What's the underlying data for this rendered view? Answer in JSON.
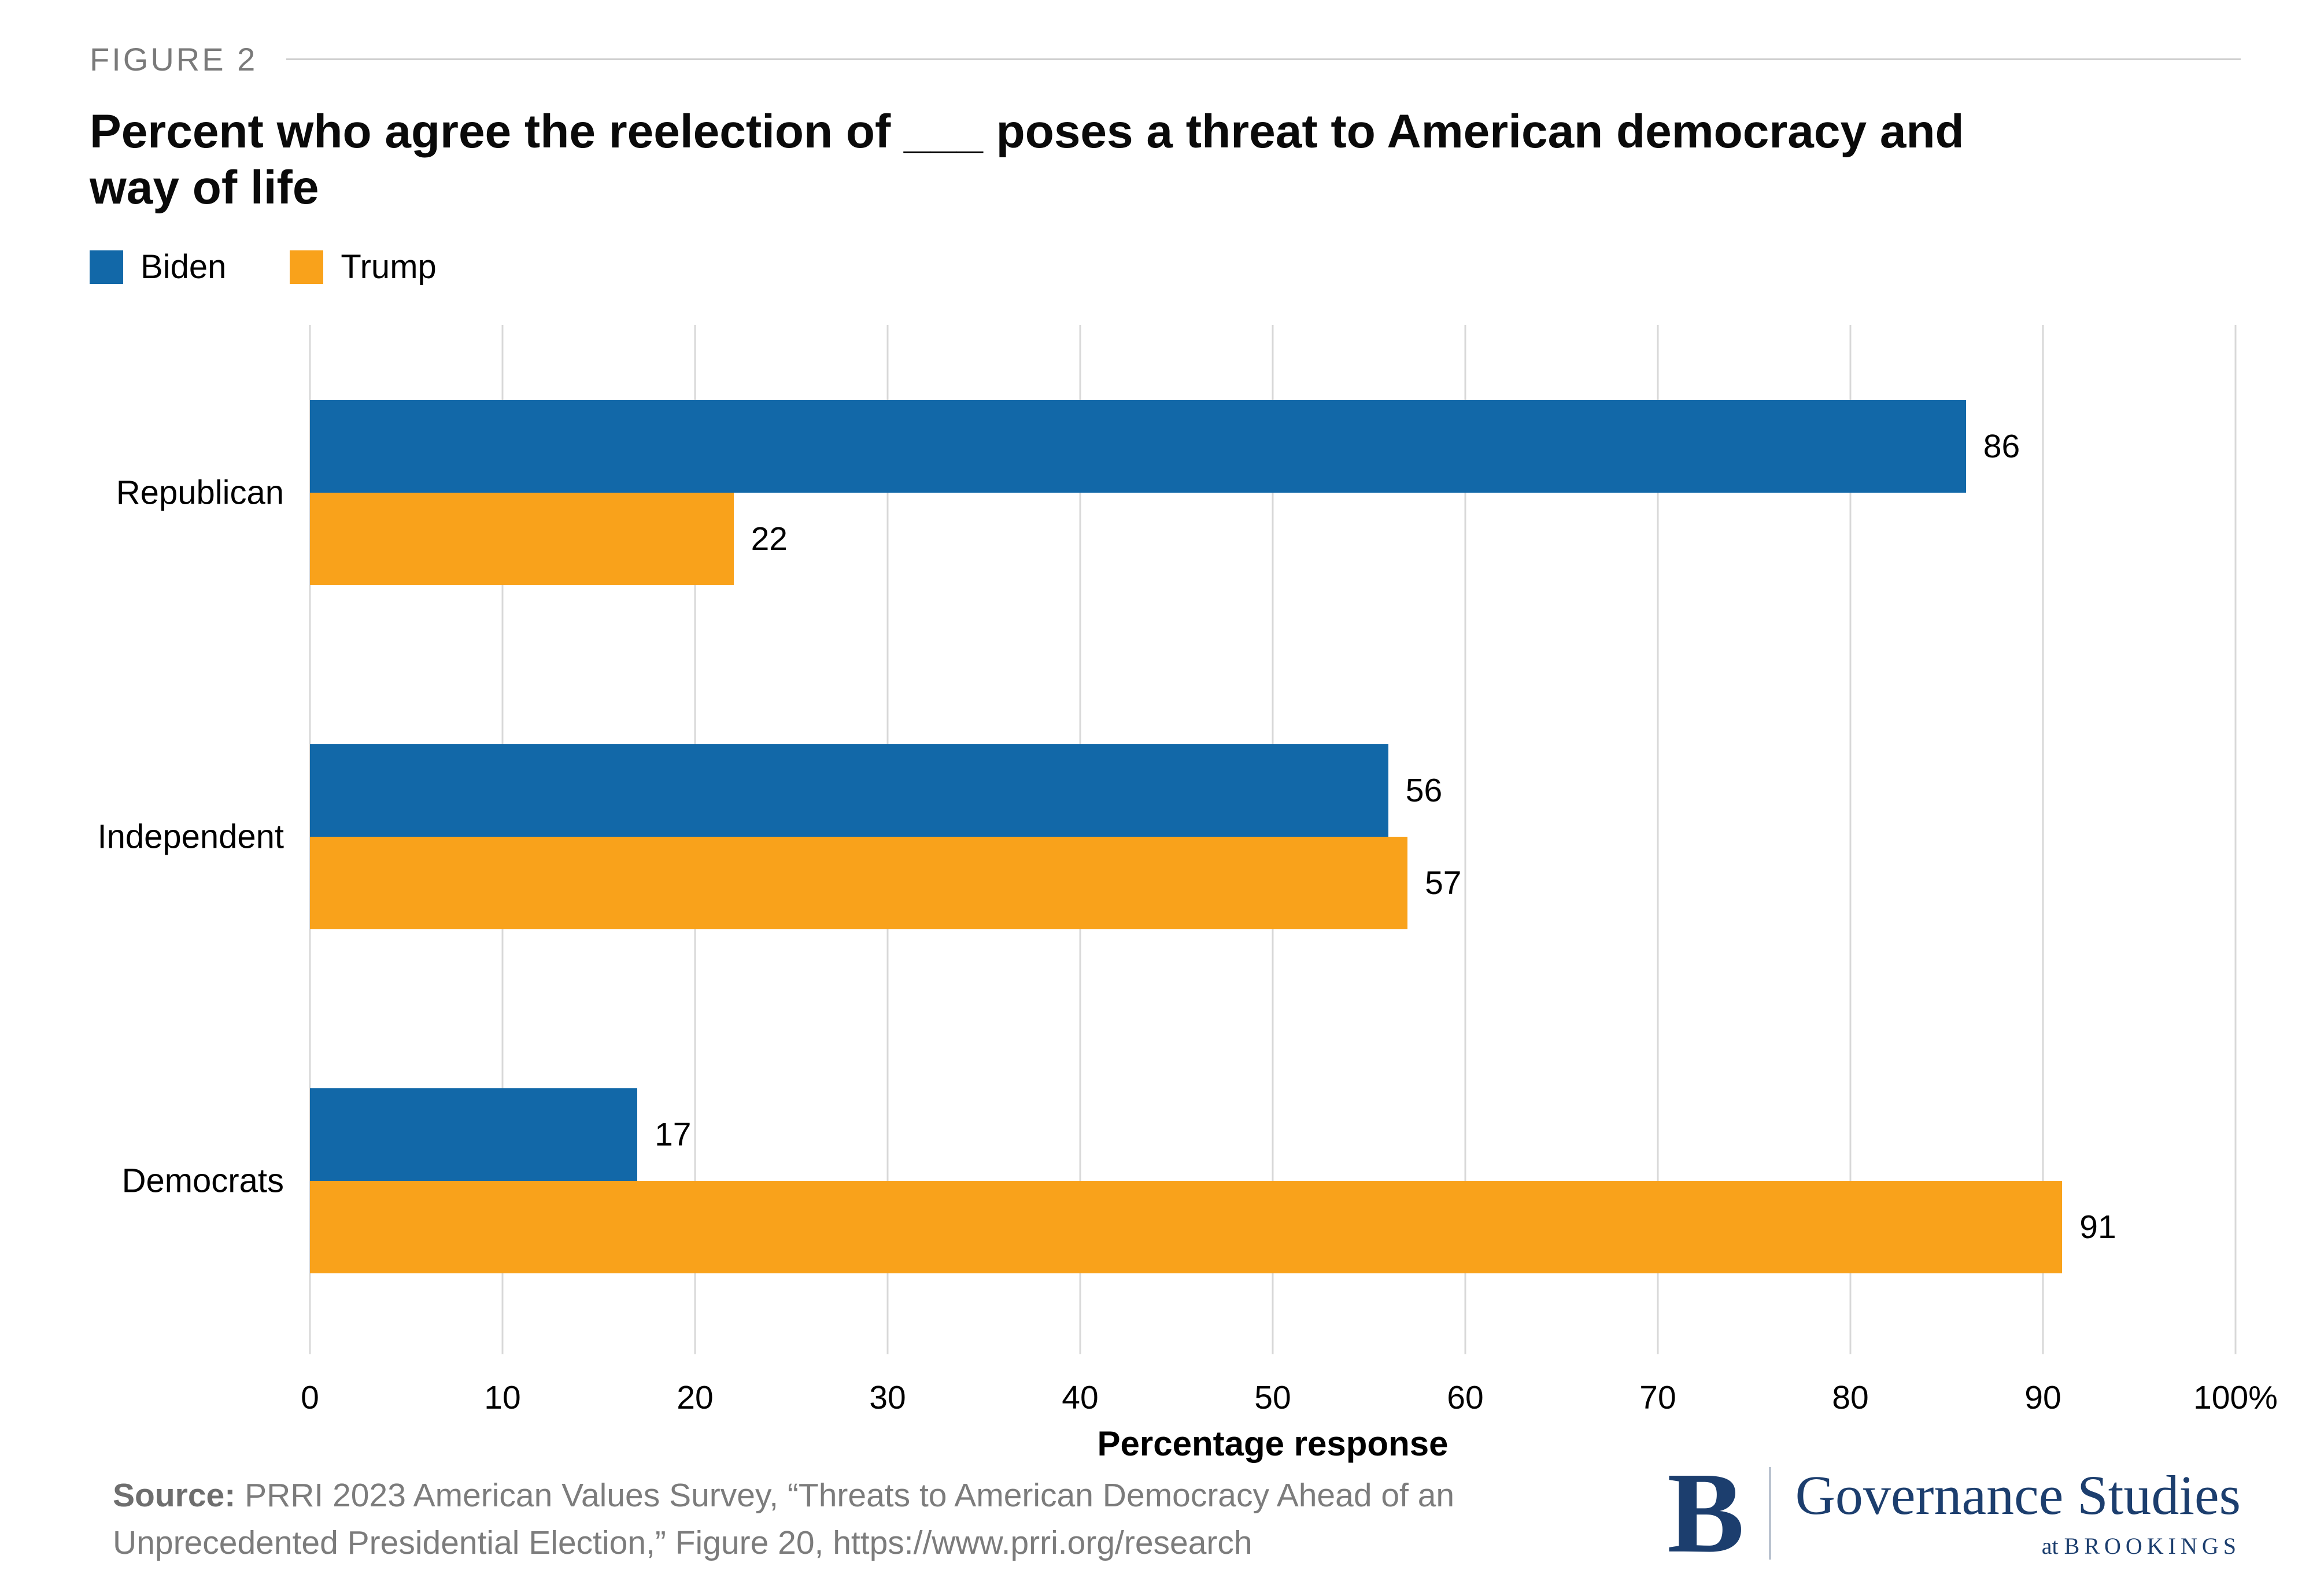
{
  "figure": {
    "label": "FIGURE 2"
  },
  "title": "Percent who agree the reelection of ___ poses a threat to American democracy and way of life",
  "legend": [
    {
      "label": "Biden",
      "color": "#1268A8"
    },
    {
      "label": "Trump",
      "color": "#F9A21B"
    }
  ],
  "chart_data": {
    "type": "bar",
    "orientation": "horizontal",
    "title": "Percent who agree the reelection of ___ poses a threat to American democracy and way of life",
    "categories": [
      "Republican",
      "Independent",
      "Democrats"
    ],
    "series": [
      {
        "name": "Biden",
        "color": "#1268A8",
        "values": [
          86,
          56,
          17
        ]
      },
      {
        "name": "Trump",
        "color": "#F9A21B",
        "values": [
          22,
          57,
          91
        ]
      }
    ],
    "xlabel": "Percentage response",
    "ylabel": "",
    "xlim": [
      0,
      100
    ],
    "xticks": [
      0,
      10,
      20,
      30,
      40,
      50,
      60,
      70,
      80,
      90,
      100
    ],
    "xtick_labels": [
      "0",
      "10",
      "20",
      "30",
      "40",
      "50",
      "60",
      "70",
      "80",
      "90",
      "100%"
    ],
    "grid": "vertical",
    "legend_position": "top-left"
  },
  "source": {
    "prefix": "Source:",
    "text": "PRRI 2023 American Values Survey, “Threats to American Democracy Ahead of an Unprecedented Presidential Election,” Figure 20, https://www.prri.org/research"
  },
  "logo": {
    "letter": "B",
    "name": "Governance Studies",
    "sub_at": "at",
    "sub_org": "BROOKINGS"
  }
}
